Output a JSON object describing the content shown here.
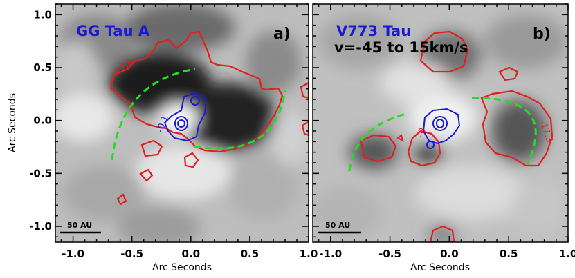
{
  "figure": {
    "x_axis_title": "Arc Seconds",
    "y_axis_title": "Arc Seconds",
    "colors": {
      "red_contour": "#e02020",
      "blue_contour": "#1a1ad6",
      "green_arc": "#22dd22",
      "title_blue": "#1a1ad6"
    }
  },
  "chart_data": [
    {
      "type": "heatmap",
      "title": "GG Tau A",
      "panel_label": "a)",
      "xlabel": "Arc Seconds",
      "ylabel": "Arc Seconds",
      "xlim": [
        -1.15,
        1.0
      ],
      "ylim": [
        -1.15,
        1.1
      ],
      "x_ticks": [
        "-1.0",
        "-0.5",
        "0.0",
        "0.5",
        "1.0"
      ],
      "x_tick_values": [
        -1.0,
        -0.5,
        0.0,
        0.5,
        1.0
      ],
      "y_ticks": [
        "-1.0",
        "-0.5",
        "0.0",
        "0.5",
        "1.0"
      ],
      "y_tick_values": [
        -1.0,
        -0.5,
        0.0,
        0.5,
        1.0
      ],
      "contour_labels": [
        "-17.8",
        "-0.1"
      ],
      "scale_bar_label": "50 AU"
    },
    {
      "type": "heatmap",
      "title": "V773 Tau",
      "panel_label": "b)",
      "subtitle": "v=-45 to 15km/s",
      "xlabel": "Arc Seconds",
      "xlim": [
        -1.15,
        1.0
      ],
      "ylim": [
        -1.15,
        1.1
      ],
      "x_ticks": [
        "-1.0",
        "-0.5",
        "0.0",
        "0.5",
        "1.0"
      ],
      "x_tick_values": [
        -1.0,
        -0.5,
        0.0,
        0.5,
        1.0
      ],
      "y_ticks": [
        "-1.0",
        "-0.5",
        "0.0",
        "0.5",
        "1.0"
      ],
      "y_tick_values": [
        -1.0,
        -0.5,
        0.0,
        0.5,
        1.0
      ],
      "contour_labels": [
        "-17.3",
        "-0"
      ],
      "scale_bar_label": "50 AU"
    }
  ]
}
